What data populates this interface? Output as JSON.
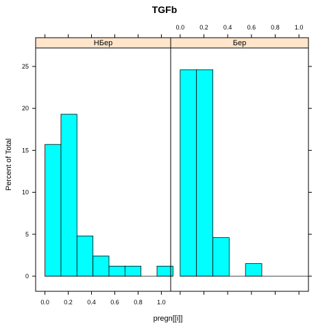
{
  "chart_data": {
    "type": "bar",
    "title": "TGFb",
    "xlabel": "pregn[[i]]",
    "ylabel": "Percent of Total",
    "xlim": [
      -0.08,
      1.08
    ],
    "ylim": [
      -1.8,
      27.2
    ],
    "x_ticks": [
      "0.0",
      "0.2",
      "0.4",
      "0.6",
      "0.8",
      "1.0"
    ],
    "y_ticks": [
      "0",
      "5",
      "10",
      "15",
      "20",
      "25"
    ],
    "bin_edges": [
      0.0,
      0.1375,
      0.275,
      0.4125,
      0.55,
      0.6875,
      0.825,
      0.9625,
      1.1
    ],
    "panels": [
      {
        "strip": "НБер",
        "values": [
          15.7,
          19.3,
          4.8,
          2.4,
          1.2,
          1.2,
          0,
          1.2
        ]
      },
      {
        "strip": "Бер",
        "values": [
          24.6,
          24.6,
          4.6,
          0,
          1.5,
          0,
          0,
          0
        ]
      }
    ],
    "colors": {
      "bar_fill": "#00ffff",
      "strip_fill": "#ffe5cc"
    },
    "grid": false,
    "legend": "none"
  }
}
